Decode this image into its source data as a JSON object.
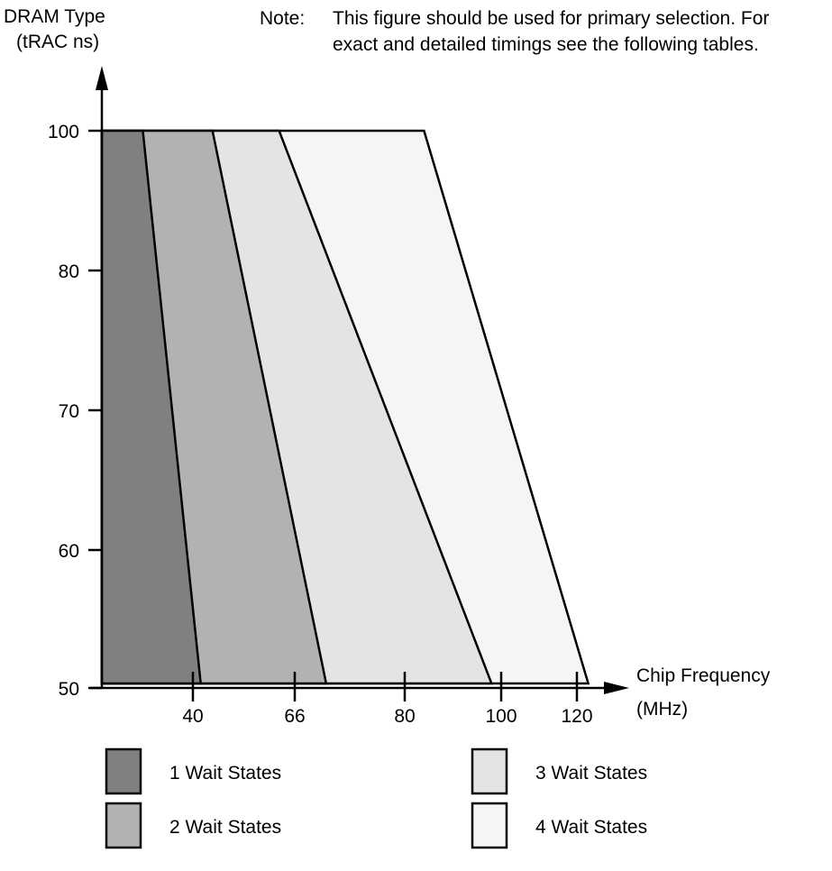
{
  "note": {
    "label": "Note:",
    "lines": [
      "This figure should be used for primary selection. For",
      "exact and detailed timings see the following tables."
    ]
  },
  "chart_data": {
    "type": "area",
    "ylabel": [
      "DRAM Type",
      "(tRAC ns)"
    ],
    "xlabel": [
      "Chip Frequency",
      "(MHz)"
    ],
    "x_ticks": [
      40,
      66,
      80,
      100,
      120
    ],
    "y_ticks": [
      100,
      80,
      70,
      60,
      50
    ],
    "y_range": [
      50,
      100
    ],
    "series": [
      {
        "name": "1 Wait States",
        "color": "#808080",
        "boundary_at_ymax": 29,
        "boundary_at_ymin": 42
      },
      {
        "name": "2 Wait States",
        "color": "#b2b2b2",
        "boundary_at_ymax": 45,
        "boundary_at_ymin": 70
      },
      {
        "name": "3 Wait States",
        "color": "#e4e4e4",
        "boundary_at_ymax": 62,
        "boundary_at_ymin": 98
      },
      {
        "name": "4 Wait States",
        "color": "#f5f5f5",
        "boundary_at_ymax": 84,
        "boundary_at_ymin": 123
      }
    ],
    "legend": [
      "1 Wait States",
      "2 Wait States",
      "3 Wait States",
      "4 Wait States"
    ]
  }
}
